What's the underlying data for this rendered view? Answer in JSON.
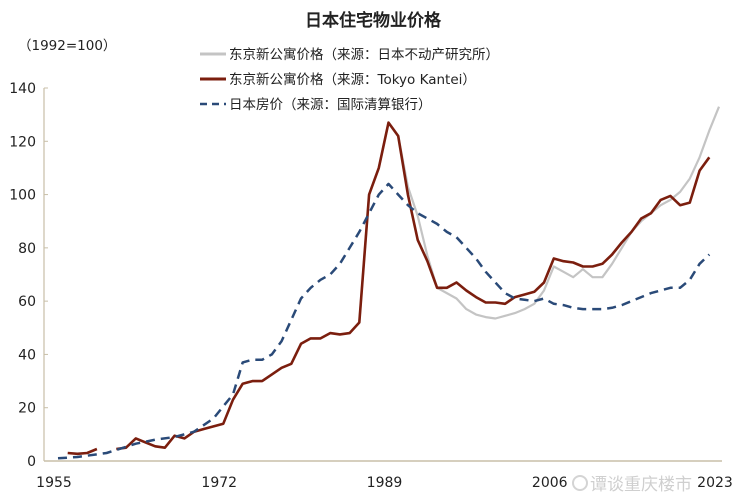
{
  "chart_data": {
    "type": "line",
    "title": "日本住宅物业价格",
    "unit_label": "（1992=100）",
    "xlabel": "",
    "ylabel": "",
    "ylim": [
      0,
      140
    ],
    "xlim": [
      1955,
      2023
    ],
    "y_ticks": [
      "0",
      "20",
      "40",
      "60",
      "80",
      "100",
      "120",
      "140"
    ],
    "x_ticks": [
      "1955",
      "1972",
      "1989",
      "2006",
      "2023"
    ],
    "grid": false,
    "legend_position": "top-center",
    "series": [
      {
        "name": "东京新公寓价格（来源：日本不动产研究所）",
        "color": "#c4c4c4",
        "style": "solid",
        "x": [
          1986,
          1987,
          1988,
          1989,
          1990,
          1991,
          1992,
          1993,
          1994,
          1995,
          1996,
          1997,
          1998,
          1999,
          2000,
          2001,
          2002,
          2003,
          2004,
          2005,
          2006,
          2007,
          2008,
          2009,
          2010,
          2011,
          2012,
          2013,
          2014,
          2015,
          2016,
          2017,
          2018,
          2019,
          2020,
          2021,
          2022,
          2023
        ],
        "y": [
          52,
          100,
          110,
          127,
          122,
          103,
          92,
          77,
          65,
          63,
          61,
          57,
          55,
          54,
          53.5,
          54.5,
          55.5,
          57,
          59,
          64,
          73,
          71,
          69,
          72,
          69,
          69,
          74,
          80,
          86,
          90,
          93,
          96,
          98,
          101,
          106,
          114,
          124,
          133
        ]
      },
      {
        "name": "东京新公寓价格（来源：Tokyo Kantei）",
        "color": "#7b1e0e",
        "style": "solid",
        "x": [
          1956,
          1957,
          1958,
          1959,
          null,
          1961,
          1962,
          1963,
          1964,
          1965,
          1966,
          1967,
          1968,
          1969,
          1970,
          1971,
          1972,
          1973,
          1974,
          1975,
          1976,
          1977,
          1978,
          1979,
          1980,
          1981,
          1982,
          1983,
          1984,
          1985,
          1986,
          1987,
          1988,
          1989,
          1990,
          1991,
          1992,
          1993,
          1994,
          1995,
          1996,
          1997,
          1998,
          1999,
          2000,
          2001,
          2002,
          2003,
          2004,
          2005,
          2006,
          2007,
          2008,
          2009,
          2010,
          2011,
          2012,
          2013,
          2014,
          2015,
          2016,
          2017,
          2018,
          2019,
          2020,
          2021,
          2022
        ],
        "y": [
          3,
          2.7,
          3,
          4.5,
          null,
          4.5,
          5,
          8.5,
          7,
          5.5,
          5,
          9.5,
          8.5,
          11,
          12,
          13,
          14,
          23,
          29,
          30,
          30,
          32.5,
          35,
          36.5,
          44,
          46,
          46,
          48,
          47.5,
          48,
          52,
          100,
          110,
          127,
          122,
          100,
          83,
          75,
          65,
          65,
          67,
          64,
          61.5,
          59.5,
          59.5,
          59,
          61.5,
          62.5,
          63.5,
          67,
          76,
          75,
          74.5,
          73,
          73,
          74,
          77.5,
          82,
          86,
          91,
          93,
          98,
          99.5,
          96,
          97,
          109,
          114
        ]
      },
      {
        "name": "日本房价（来源：国际清算银行）",
        "color": "#2a4a78",
        "style": "dashed",
        "x": [
          1955,
          1957,
          1960,
          1963,
          1965,
          1967,
          1969,
          1971,
          1973,
          1974,
          1975,
          1976,
          1977,
          1978,
          1979,
          1980,
          1981,
          1982,
          1983,
          1984,
          1985,
          1986,
          1987,
          1988,
          1989,
          1990,
          1991,
          1992,
          1993,
          1994,
          1995,
          1996,
          1997,
          1998,
          1999,
          2000,
          2001,
          2002,
          2003,
          2004,
          2005,
          2006,
          2007,
          2008,
          2009,
          2010,
          2011,
          2012,
          2013,
          2014,
          2015,
          2016,
          2017,
          2018,
          2019,
          2020,
          2021,
          2022
        ],
        "y": [
          1,
          1.5,
          3,
          6.5,
          8,
          9,
          11,
          16,
          25,
          37,
          38,
          38,
          40,
          45,
          53,
          61,
          65,
          68,
          70,
          74,
          80,
          86,
          93,
          100,
          104,
          100,
          96,
          93,
          91,
          89,
          86,
          84,
          80,
          76,
          71,
          67,
          63,
          61,
          60.5,
          60,
          61,
          59,
          58.5,
          57.5,
          57,
          57,
          57,
          57.5,
          58.5,
          60,
          61.5,
          63,
          64,
          65,
          65,
          68,
          74,
          77.5
        ]
      }
    ]
  },
  "watermark": "谭谈重庆楼市"
}
